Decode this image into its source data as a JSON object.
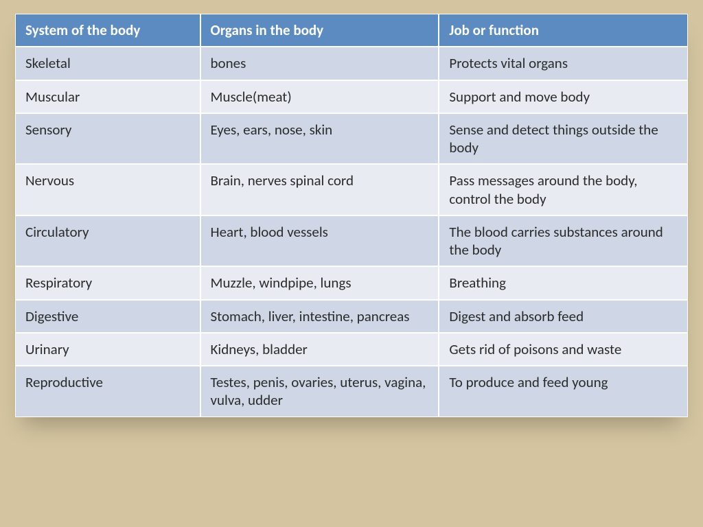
{
  "table": {
    "type": "table",
    "header_bg": "#5b8bc1",
    "header_text_color": "#ffffff",
    "row_odd_bg": "#cfd6e5",
    "row_even_bg": "#e8ebf2",
    "border_color": "#ffffff",
    "cell_fontsize": 21,
    "columns": [
      {
        "label": "System of the body",
        "width_pct": 27.5
      },
      {
        "label": "Organs in the body",
        "width_pct": 35.5
      },
      {
        "label": "Job or function",
        "width_pct": 37.0
      }
    ],
    "rows": [
      [
        "Skeletal",
        "bones",
        "Protects vital organs"
      ],
      [
        "Muscular",
        "Muscle(meat)",
        "Support and move body"
      ],
      [
        "Sensory",
        "Eyes, ears, nose, skin",
        "Sense and detect things outside the body"
      ],
      [
        "Nervous",
        "Brain, nerves spinal cord",
        "Pass messages around the body, control the body"
      ],
      [
        "Circulatory",
        "Heart, blood vessels",
        "The blood carries substances around the body"
      ],
      [
        "Respiratory",
        "Muzzle, windpipe, lungs",
        "Breathing"
      ],
      [
        "Digestive",
        "Stomach, liver, intestine, pancreas",
        "Digest and absorb feed"
      ],
      [
        "Urinary",
        "Kidneys, bladder",
        "Gets rid of poisons and waste"
      ],
      [
        "Reproductive",
        "Testes, penis, ovaries, uterus, vagina, vulva, udder",
        "To produce and feed young"
      ]
    ]
  },
  "background_color": "#d4c5a0"
}
